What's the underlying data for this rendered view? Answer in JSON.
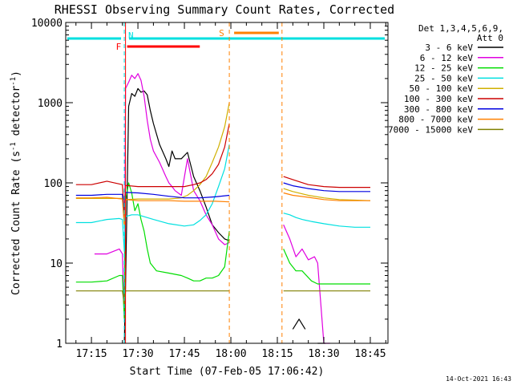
{
  "chart_data": {
    "type": "line",
    "title": "RHESSI Observing Summary Count Rates, Corrected",
    "xlabel": "Start Time (07-Feb-05 17:06:42)",
    "ylabel_main": "Corrected Count Rate (s",
    "ylabel_sup1": "-1",
    "ylabel_mid": " detector",
    "ylabel_sup2": "-1",
    "ylabel_end": ")",
    "yscale": "log",
    "ylim": [
      1,
      10000
    ],
    "xlim_minutes": [
      1026.7,
      1130.7
    ],
    "x_ticks": [
      {
        "minute": 1035,
        "label": "17:15"
      },
      {
        "minute": 1050,
        "label": "17:30"
      },
      {
        "minute": 1065,
        "label": "17:45"
      },
      {
        "minute": 1080,
        "label": "18:00"
      },
      {
        "minute": 1095,
        "label": "18:15"
      },
      {
        "minute": 1110,
        "label": "18:30"
      },
      {
        "minute": 1125,
        "label": "18:45"
      }
    ],
    "y_ticks": [
      {
        "value": 1,
        "label": "1"
      },
      {
        "value": 10,
        "label": "10"
      },
      {
        "value": 100,
        "label": "100"
      },
      {
        "value": 1000,
        "label": "1000"
      },
      {
        "value": 10000,
        "label": "10000"
      }
    ],
    "legend_header": [
      "Det 1,3,4,5,6,9,",
      "Att 0"
    ],
    "series": [
      {
        "name": "3 - 6 keV",
        "color": "#000000",
        "x": [
          1026.7,
          1045,
          1045.6,
          1046,
          1047,
          1048,
          1049,
          1050,
          1051,
          1052,
          1053,
          1054,
          1055,
          1057,
          1059,
          1060,
          1061,
          1062,
          1064,
          1066,
          1068,
          1070,
          1072,
          1074,
          1076,
          1078,
          1079.5,
          1080.5,
          1096.5,
          1100,
          1102,
          1104,
          1106,
          1108,
          1110.5,
          1130.7
        ],
        "values": [
          null,
          null,
          1,
          5,
          900,
          1300,
          1200,
          1500,
          1350,
          1400,
          1250,
          800,
          550,
          300,
          200,
          160,
          250,
          200,
          200,
          240,
          120,
          80,
          50,
          30,
          24,
          20,
          19,
          null,
          null,
          1.5,
          2,
          1.5,
          null,
          1,
          1,
          null
        ]
      },
      {
        "name": "6 - 12 keV",
        "color": "#e000e0",
        "x": [
          1026.7,
          1035,
          1036,
          1040,
          1044,
          1045,
          1045.6,
          1046,
          1047,
          1048,
          1049,
          1050,
          1051,
          1052,
          1053,
          1054,
          1055,
          1057,
          1059,
          1060,
          1061,
          1062,
          1064,
          1066,
          1068,
          1070,
          1072,
          1074,
          1076,
          1078,
          1079.5,
          1080.5,
          1096.5,
          1097,
          1099,
          1101,
          1103,
          1105,
          1107,
          1108,
          1110,
          1112,
          1130.7
        ],
        "values": [
          null,
          null,
          13,
          13,
          15,
          13,
          2,
          1500,
          1800,
          2200,
          2000,
          2300,
          1900,
          1200,
          600,
          350,
          250,
          180,
          120,
          100,
          90,
          80,
          70,
          200,
          80,
          60,
          40,
          30,
          20,
          17,
          18,
          null,
          null,
          30,
          20,
          12,
          15,
          11,
          12,
          10,
          1,
          1,
          null
        ]
      },
      {
        "name": "12 - 25 keV",
        "color": "#00dd00",
        "x": [
          1026.7,
          1030,
          1035,
          1040,
          1044,
          1045,
          1045.6,
          1046,
          1047,
          1048,
          1049,
          1050,
          1051,
          1052,
          1053,
          1054,
          1056,
          1060,
          1064,
          1066,
          1068,
          1070,
          1072,
          1074,
          1076,
          1078,
          1079.5,
          1080.5,
          1096.5,
          1097,
          1099,
          1101,
          1103,
          1106,
          1108,
          1110,
          1112,
          1115,
          1120,
          1125,
          1130.7
        ],
        "values": [
          null,
          5.8,
          5.8,
          6,
          7,
          7,
          2,
          60,
          100,
          75,
          45,
          55,
          35,
          25,
          15,
          10,
          8,
          7.5,
          7,
          6.5,
          6,
          6,
          6.5,
          6.5,
          7,
          9,
          25,
          null,
          null,
          15,
          10,
          8,
          8,
          6,
          5.5,
          5.5,
          5.5,
          5.5,
          5.5,
          5.5,
          null
        ]
      },
      {
        "name": "25 - 50 keV",
        "color": "#00e0e0",
        "x": [
          1026.7,
          1030,
          1035,
          1040,
          1044,
          1045,
          1045.6,
          1046,
          1048,
          1050,
          1055,
          1060,
          1065,
          1068,
          1070,
          1072,
          1074,
          1076,
          1078,
          1079.5,
          1080.5,
          1096.5,
          1097,
          1099,
          1101,
          1103,
          1106,
          1110,
          1115,
          1120,
          1125,
          1130.7
        ],
        "values": [
          null,
          32,
          32,
          35,
          36,
          35,
          14,
          38,
          40,
          40,
          35,
          31,
          29,
          30,
          34,
          40,
          55,
          90,
          150,
          300,
          null,
          null,
          42,
          40,
          37,
          35,
          33,
          31,
          29,
          28,
          28,
          null
        ]
      },
      {
        "name": "50 - 100 keV",
        "color": "#d0b000",
        "x": [
          1026.7,
          1030,
          1040,
          1045,
          1045.6,
          1046,
          1050,
          1060,
          1064,
          1066,
          1068,
          1070,
          1072,
          1074,
          1076,
          1078,
          1079.5,
          1080.5,
          1096.5,
          1097,
          1100,
          1105,
          1110,
          1115,
          1120,
          1125,
          1130.7
        ],
        "values": [
          null,
          64,
          64,
          64,
          30,
          62,
          63,
          63,
          65,
          70,
          80,
          95,
          120,
          180,
          280,
          500,
          1000,
          null,
          null,
          85,
          78,
          70,
          65,
          62,
          61,
          60,
          null
        ]
      },
      {
        "name": "100 - 300 keV",
        "color": "#cc0000",
        "x": [
          1026.7,
          1030,
          1035,
          1040,
          1045,
          1045.6,
          1046,
          1050,
          1055,
          1060,
          1065,
          1068,
          1070,
          1072,
          1074,
          1076,
          1078,
          1079.5,
          1080.5,
          1096.5,
          1097,
          1100,
          1105,
          1110,
          1115,
          1120,
          1125,
          1130.7
        ],
        "values": [
          null,
          95,
          95,
          105,
          95,
          40,
          93,
          90,
          90,
          90,
          90,
          95,
          100,
          110,
          130,
          170,
          280,
          550,
          null,
          null,
          120,
          110,
          95,
          90,
          88,
          88,
          88,
          null
        ]
      },
      {
        "name": "300 - 800 keV",
        "color": "#0000e0",
        "x": [
          1026.7,
          1030,
          1035,
          1040,
          1045,
          1045.6,
          1046,
          1050,
          1055,
          1060,
          1065,
          1070,
          1075,
          1079.5,
          1080.5,
          1096.5,
          1097,
          1100,
          1105,
          1110,
          1115,
          1120,
          1125,
          1130.7
        ],
        "values": [
          null,
          70,
          70,
          72,
          72,
          35,
          76,
          75,
          72,
          68,
          65,
          65,
          67,
          70,
          null,
          null,
          100,
          92,
          85,
          80,
          78,
          78,
          78,
          null
        ]
      },
      {
        "name": "800 - 7000 keV",
        "color": "#ff8000",
        "x": [
          1026.7,
          1030,
          1035,
          1040,
          1045,
          1045.6,
          1046,
          1050,
          1055,
          1060,
          1065,
          1070,
          1075,
          1079.5,
          1080.5,
          1096.5,
          1097,
          1100,
          1105,
          1110,
          1115,
          1120,
          1125,
          1130.7
        ],
        "values": [
          null,
          65,
          65,
          66,
          63,
          30,
          62,
          60,
          60,
          60,
          59,
          59,
          59,
          58,
          null,
          null,
          75,
          70,
          66,
          62,
          60,
          60,
          60,
          null
        ]
      },
      {
        "name": "7000 - 15000 keV",
        "color": "#808000",
        "x": [
          1026.7,
          1030,
          1035,
          1040,
          1045,
          1045.6,
          1046,
          1050,
          1055,
          1060,
          1065,
          1070,
          1075,
          1079.5,
          1080.5,
          1096.5,
          1097,
          1100,
          1105,
          1110,
          1115,
          1120,
          1125,
          1130.7
        ],
        "values": [
          null,
          4.5,
          4.5,
          4.5,
          4.5,
          3,
          4.5,
          4.5,
          4.5,
          4.5,
          4.5,
          4.5,
          4.5,
          4.5,
          null,
          null,
          4.5,
          4.5,
          4.5,
          4.5,
          4.5,
          4.5,
          4.5,
          null
        ]
      }
    ],
    "annotations": [
      {
        "text": "N",
        "color": "#00e0e0",
        "start": 1045.6,
        "end": 1130.7
      },
      {
        "text": "F",
        "color": "#ff0000",
        "start": 1046,
        "end": 1071
      },
      {
        "text": "S",
        "color": "#ff8000",
        "start": 1079.5,
        "end": 1096.5
      }
    ],
    "footer_date": "14-Oct-2021 16:43"
  }
}
